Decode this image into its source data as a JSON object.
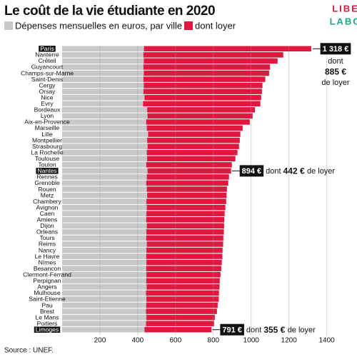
{
  "chart_data": {
    "type": "stacked-barh",
    "title": "Le coût de la vie étudiante en 2020",
    "logo": [
      "LIBE",
      "LABO"
    ],
    "source": "Source : UNEF.",
    "categories": [
      "Paris",
      "Nanterre",
      "Créteil",
      "Guyancourt",
      "Champs-sur-Marne",
      "Saint-Denis",
      "Cergy",
      "Orsay",
      "Nice",
      "Evry",
      "Bordeaux",
      "Lyon",
      "Aix-en-Provence",
      "Marseille",
      "Lille",
      "Montpellier",
      "Strasbourg",
      "La Rochelle",
      "Toulouse",
      "Toulon",
      "Nantes",
      "Rennes",
      "Grenoble",
      "Rouen",
      "Metz",
      "Chambery",
      "Avignon",
      "Caen",
      "Amiens",
      "Dijon",
      "Orleans",
      "Tours",
      "Reims",
      "Nancy",
      "Le Havre",
      "Nîmes",
      "Besancon",
      "Clermont-Ferrand",
      "Perpignan",
      "Angers",
      "Mulhouse",
      "Saint-Etienne",
      "Pau",
      "Brest",
      "Le Mans",
      "Poitiers",
      "Limoges"
    ],
    "series": [
      {
        "name": "Dépenses mensuelles en euros, par ville",
        "color": "#c8c8c8",
        "values": [
          433,
          430,
          432,
          430,
          432,
          430,
          432,
          430,
          436,
          428,
          450,
          452,
          445,
          448,
          455,
          450,
          452,
          448,
          450,
          445,
          452,
          448,
          445,
          448,
          450,
          446,
          448,
          446,
          445,
          448,
          446,
          445,
          448,
          446,
          445,
          446,
          445,
          446,
          445,
          447,
          444,
          446,
          445,
          444,
          446,
          444,
          436
        ]
      },
      {
        "name": "dont loyer",
        "color": "#e0173f",
        "values": [
          885,
          740,
          708,
          670,
          663,
          645,
          628,
          627,
          617,
          621,
          570,
          556,
          548,
          507,
          488,
          490,
          484,
          480,
          467,
          453,
          442,
          435,
          434,
          424,
          420,
          422,
          416,
          414,
          413,
          409,
          410,
          408,
          404,
          403,
          403,
          399,
          397,
          392,
          389,
          386,
          386,
          383,
          378,
          375,
          362,
          360,
          355
        ]
      }
    ],
    "highlight": [
      0,
      20,
      46
    ],
    "annotations": [
      {
        "row": 0,
        "total": "1 318 €",
        "dont": "dont",
        "rent": "885 €",
        "suffix": "de loyer"
      },
      {
        "row": 20,
        "total": "894 €",
        "dont": "dont",
        "rent": "442 €",
        "suffix": "de loyer"
      },
      {
        "row": 46,
        "total": "791 €",
        "dont": "dont",
        "rent": "355 €",
        "suffix": "de loyer"
      }
    ],
    "xlim": [
      0,
      1530
    ],
    "xticks": [
      200,
      400,
      600,
      800,
      1000,
      1200,
      1400
    ],
    "grid": true
  }
}
